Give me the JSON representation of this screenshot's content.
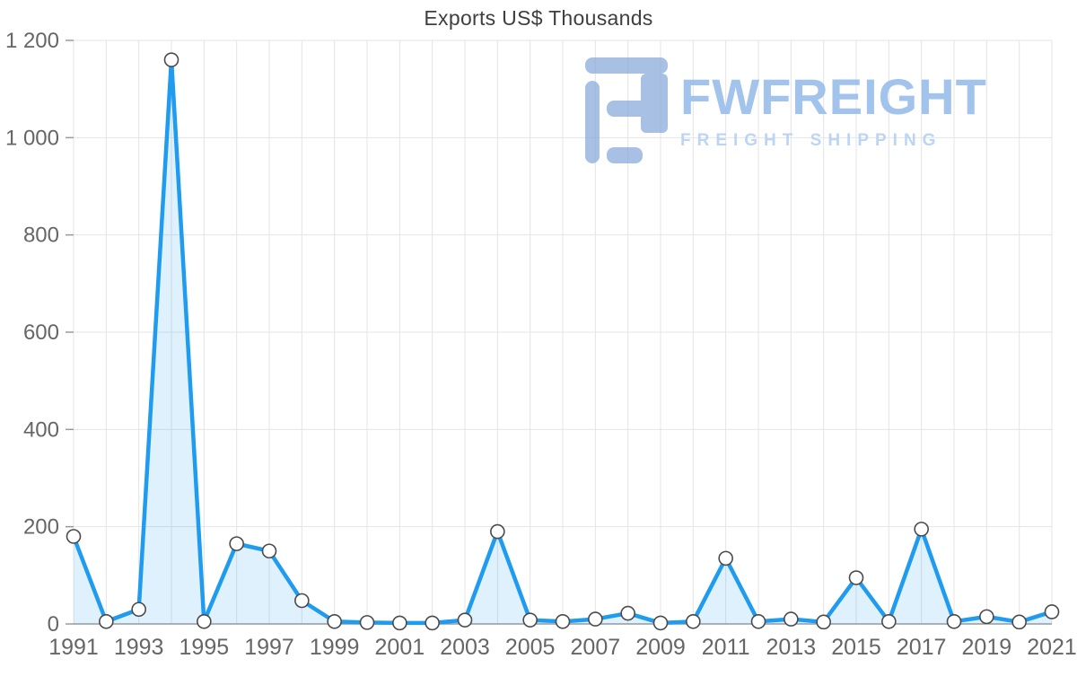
{
  "chart": {
    "title": "Exports US$ Thousands",
    "watermark": {
      "brand": "FWFREIGHT",
      "tagline": "FREIGHT SHIPPING"
    }
  },
  "chart_data": {
    "type": "area",
    "title": "Exports US$ Thousands",
    "x": [
      1991,
      1992,
      1993,
      1994,
      1995,
      1996,
      1997,
      1998,
      1999,
      2000,
      2001,
      2002,
      2003,
      2004,
      2005,
      2006,
      2007,
      2008,
      2009,
      2010,
      2011,
      2012,
      2013,
      2014,
      2015,
      2016,
      2017,
      2018,
      2019,
      2020,
      2021
    ],
    "values": [
      180,
      5,
      30,
      1160,
      5,
      165,
      150,
      48,
      5,
      3,
      2,
      2,
      8,
      190,
      8,
      5,
      10,
      22,
      2,
      5,
      135,
      5,
      10,
      4,
      95,
      5,
      195,
      5,
      15,
      4,
      25
    ],
    "xlabel": "",
    "ylabel": "",
    "ylim": [
      0,
      1200
    ],
    "y_ticks": [
      0,
      200,
      400,
      600,
      800,
      1000,
      1200
    ],
    "y_tick_labels": [
      "0",
      "200",
      "400",
      "600",
      "800",
      "1 000",
      "1 200"
    ],
    "x_tick_labels": [
      "1991",
      "1993",
      "1995",
      "1997",
      "1999",
      "2001",
      "2003",
      "2005",
      "2007",
      "2009",
      "2011",
      "2013",
      "2015",
      "2017",
      "2019",
      "2021"
    ],
    "grid": true,
    "legend": "none",
    "marker": "circle",
    "colors": {
      "line": "#1f9bf0",
      "fill": "rgba(31,155,240,0.14)",
      "marker_fill": "#ffffff",
      "marker_stroke": "#4a4a4a",
      "grid": "#e4e4e4",
      "axis": "#9a9a9a",
      "tick_text": "#666666",
      "title_text": "#3f3f3f",
      "watermark_icon": "#84a7da",
      "watermark_brand": "#96bbe9",
      "watermark_tagline": "#b5d0f1"
    }
  }
}
